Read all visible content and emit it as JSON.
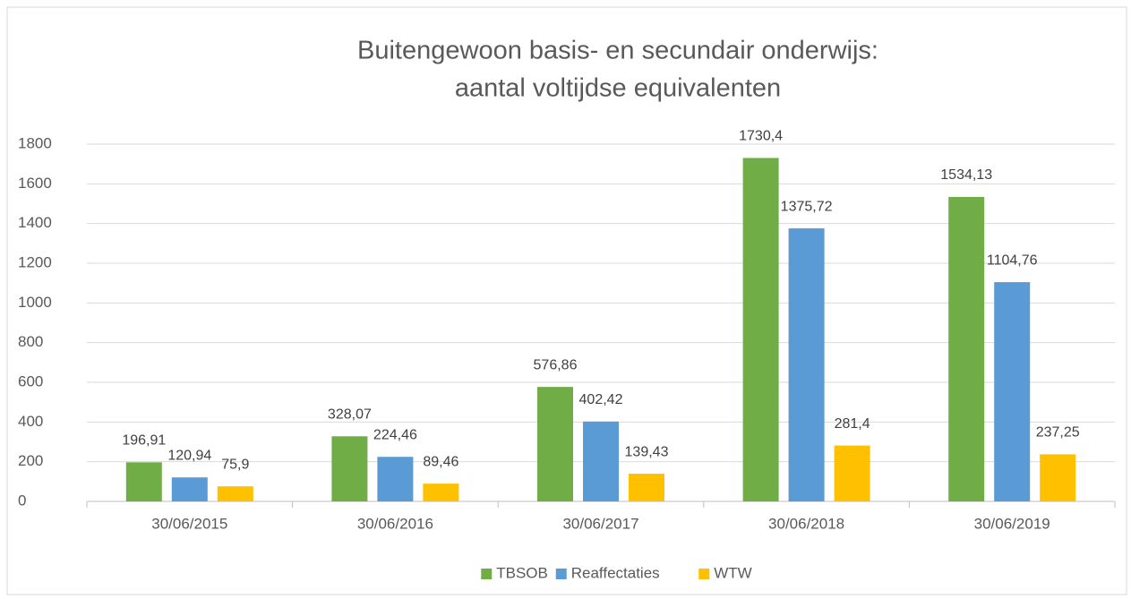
{
  "chart_data": {
    "type": "bar",
    "title": [
      "Buitengewoon basis- en secundair onderwijs:",
      "aantal voltijdse equivalenten"
    ],
    "categories": [
      "30/06/2015",
      "30/06/2016",
      "30/06/2017",
      "30/06/2018",
      "30/06/2019"
    ],
    "series": [
      {
        "name": "TBSOB",
        "color": "#70ad47",
        "values": [
          196.91,
          328.07,
          576.86,
          1730.4,
          1534.13
        ],
        "value_labels": [
          "196,91",
          "328,07",
          "576,86",
          "1730,4",
          "1534,13"
        ]
      },
      {
        "name": "Reaffectaties",
        "color": "#5b9bd5",
        "values": [
          120.94,
          224.46,
          402.42,
          1375.72,
          1104.76
        ],
        "value_labels": [
          "120,94",
          "224,46",
          "402,42",
          "1375,72",
          "1104,76"
        ]
      },
      {
        "name": "WTW",
        "color": "#ffc000",
        "values": [
          75.9,
          89.46,
          139.43,
          281.4,
          237.25
        ],
        "value_labels": [
          "75,9",
          "89,46",
          "139,43",
          "281,4",
          "237,25"
        ]
      }
    ],
    "ylim": [
      0,
      1800
    ],
    "yticks": [
      0,
      200,
      400,
      600,
      800,
      1000,
      1200,
      1400,
      1600,
      1800
    ],
    "grid": true,
    "legend": "bottom"
  }
}
